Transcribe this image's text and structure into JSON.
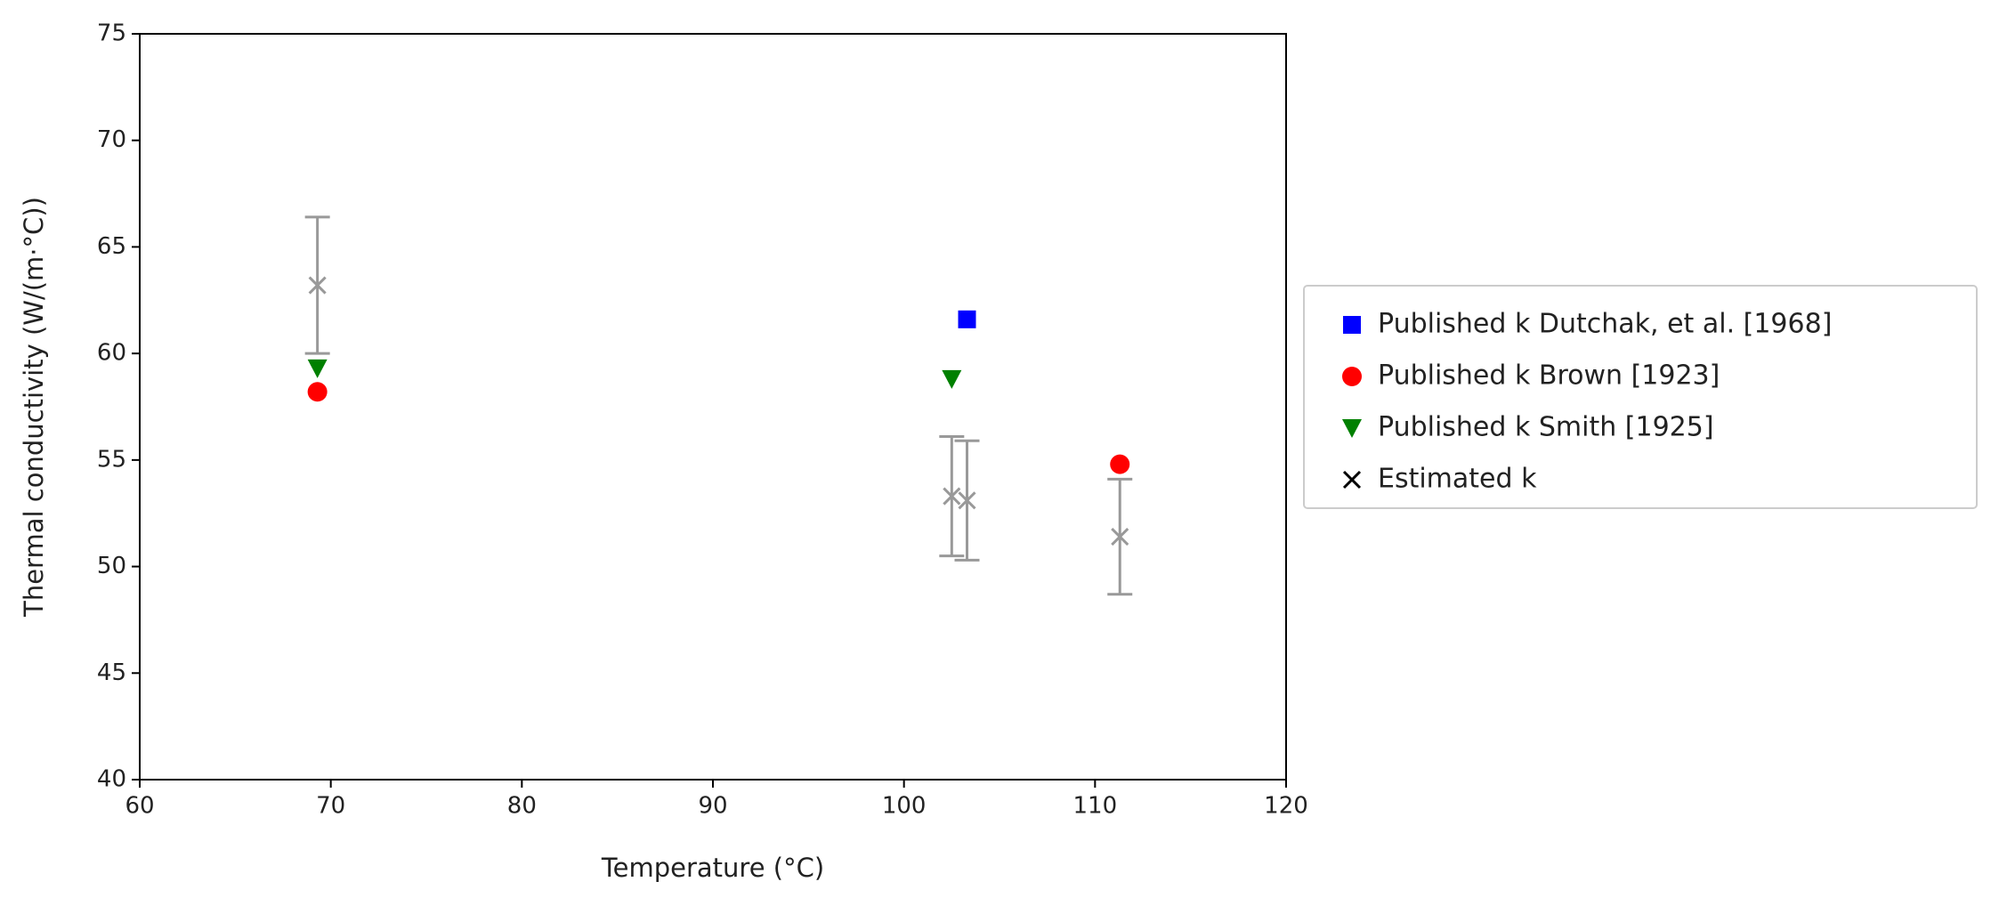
{
  "chart_data": {
    "type": "scatter",
    "xlabel": "Temperature (°C)",
    "ylabel": "Thermal conductivity (W/(m·°C))",
    "xlim": [
      60,
      120
    ],
    "ylim": [
      40,
      75
    ],
    "xticks": [
      60,
      70,
      80,
      90,
      100,
      110,
      120
    ],
    "yticks": [
      40,
      45,
      50,
      55,
      60,
      65,
      70,
      75
    ],
    "grid": false,
    "legend": "outside right",
    "errorbar_color": "#999999",
    "series": [
      {
        "name": "Published k Dutchak, et al. [1968]",
        "color": "#0000ff",
        "marker": "square",
        "x": [
          103.3
        ],
        "values": [
          61.6
        ]
      },
      {
        "name": "Published k Brown [1923]",
        "color": "#ff0000",
        "marker": "circle",
        "x": [
          69.3,
          111.3
        ],
        "values": [
          58.2,
          54.8
        ]
      },
      {
        "name": "Published k Smith [1925]",
        "color": "#008000",
        "marker": "triangle-down",
        "x": [
          69.3,
          102.5
        ],
        "values": [
          59.3,
          58.8
        ]
      },
      {
        "name": "Estimated k",
        "color": "#000000",
        "marker": "x",
        "x": [
          69.3,
          102.5,
          103.3,
          111.3
        ],
        "values": [
          63.2,
          53.3,
          53.1,
          51.4
        ],
        "errors": [
          3.2,
          2.8,
          2.8,
          2.7
        ]
      }
    ]
  }
}
